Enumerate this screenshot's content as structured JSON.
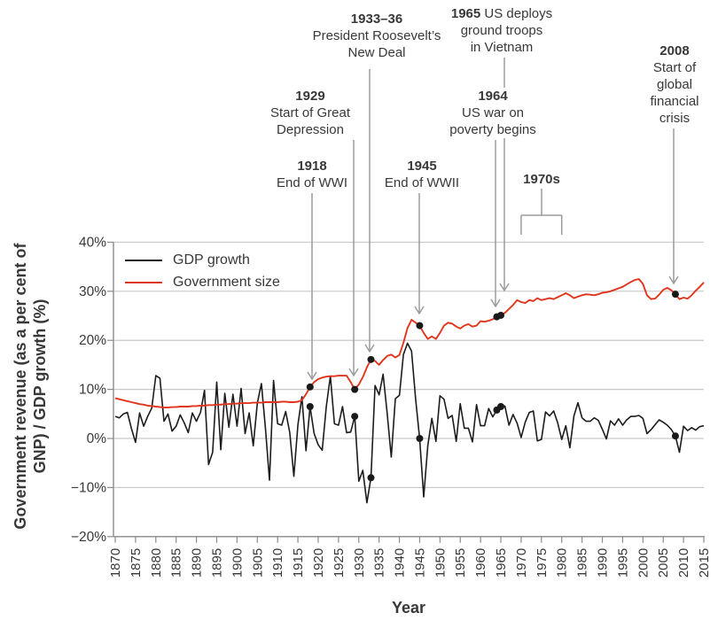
{
  "figure": {
    "y_axis_title_line1": "Government revenue (as a per cent of",
    "y_axis_title_line2": "GNP) / GDP growth (%)",
    "x_axis_title": "Year"
  },
  "legend": {
    "items": [
      {
        "label": "GDP growth",
        "color": "#1c1c1c"
      },
      {
        "label": "Government size",
        "color": "#e0351c"
      }
    ]
  },
  "colors": {
    "gdp_line": "#1c1c1c",
    "government_line": "#e0351c",
    "grid": "#c9c9c9",
    "axis": "#8c8c8c",
    "annotation_line": "#9b9b9b",
    "text": "#383838",
    "marker": "#1a1a1a"
  },
  "chart_data": {
    "type": "line",
    "title": "",
    "xlabel": "Year",
    "ylabel": "Government revenue (as a per cent of GNP) / GDP growth (%)",
    "xlim": [
      1870,
      2015
    ],
    "ylim": [
      -20,
      40
    ],
    "grid": "horizontal",
    "legend_position": "top-left-inside",
    "x_ticks": [
      1870,
      1875,
      1880,
      1885,
      1890,
      1895,
      1900,
      1905,
      1910,
      1915,
      1920,
      1925,
      1930,
      1935,
      1940,
      1945,
      1950,
      1955,
      1960,
      1965,
      1970,
      1975,
      1980,
      1985,
      1990,
      1995,
      2000,
      2005,
      2010,
      2015
    ],
    "y_ticks": [
      {
        "v": 40,
        "label": "40%"
      },
      {
        "v": 30,
        "label": "30%"
      },
      {
        "v": 20,
        "label": "20%"
      },
      {
        "v": 10,
        "label": "10%"
      },
      {
        "v": 0,
        "label": "0%"
      },
      {
        "v": -10,
        "label": "−10%"
      },
      {
        "v": -20,
        "label": "−20%"
      }
    ],
    "x_start": 1870,
    "x_step": 1,
    "series": [
      {
        "name": "GDP growth",
        "color": "#1c1c1c",
        "values": [
          4.5,
          4.2,
          5.0,
          5.3,
          2.0,
          -0.8,
          5.2,
          2.5,
          4.5,
          6.2,
          12.8,
          12.3,
          3.5,
          5.0,
          1.5,
          2.5,
          4.8,
          3.2,
          1.2,
          5.2,
          3.5,
          5.3,
          9.8,
          -5.3,
          -2.8,
          11.5,
          -2.3,
          9.2,
          2.3,
          9.0,
          2.5,
          10.2,
          1.0,
          5.2,
          -1.5,
          7.2,
          11.2,
          2.2,
          -8.5,
          11.8,
          3.0,
          2.7,
          5.5,
          1.2,
          -7.7,
          2.8,
          8.5,
          -2.5,
          6.5,
          1.0,
          -1.3,
          -2.4,
          6.5,
          12.7,
          3.0,
          2.7,
          6.5,
          1.2,
          1.3,
          4.5,
          -8.7,
          -6.5,
          -13.1,
          -8.0,
          10.8,
          8.9,
          13.1,
          5.1,
          -3.8,
          8.1,
          8.8,
          17.1,
          19.4,
          17.8,
          8.0,
          0.0,
          -11.9,
          -1.5,
          4.1,
          -0.6,
          8.7,
          8.0,
          4.1,
          4.7,
          -0.6,
          7.1,
          2.1,
          2.1,
          -0.7,
          6.9,
          2.6,
          2.6,
          6.1,
          4.4,
          5.8,
          6.5,
          6.6,
          2.7,
          4.9,
          3.1,
          0.2,
          3.3,
          5.3,
          5.6,
          -0.5,
          -0.2,
          5.4,
          4.6,
          5.6,
          3.2,
          -0.2,
          2.6,
          -1.9,
          4.6,
          7.3,
          4.2,
          3.5,
          3.5,
          4.2,
          3.7,
          1.9,
          -0.1,
          3.6,
          2.7,
          4.0,
          2.7,
          3.8,
          4.5,
          4.5,
          4.7,
          4.1,
          1.0,
          1.8,
          2.8,
          3.8,
          3.3,
          2.7,
          1.8,
          0.5,
          -2.8,
          2.5,
          1.6,
          2.2,
          1.7,
          2.4,
          2.6
        ]
      },
      {
        "name": "Government size",
        "color": "#e0351c",
        "values": [
          8.2,
          8.0,
          7.8,
          7.6,
          7.4,
          7.2,
          7.0,
          6.9,
          6.7,
          6.6,
          6.5,
          6.4,
          6.3,
          6.3,
          6.4,
          6.4,
          6.5,
          6.5,
          6.5,
          6.6,
          6.6,
          6.7,
          6.7,
          6.8,
          6.8,
          6.9,
          6.9,
          7.0,
          7.0,
          7.1,
          7.1,
          7.2,
          7.2,
          7.2,
          7.3,
          7.3,
          7.3,
          7.4,
          7.4,
          7.4,
          7.4,
          7.5,
          7.5,
          7.4,
          7.4,
          7.5,
          7.8,
          9.0,
          10.5,
          11.5,
          12.1,
          12.4,
          12.6,
          12.7,
          12.7,
          12.8,
          12.8,
          12.8,
          11.5,
          10.0,
          11.0,
          12.5,
          14.5,
          16.1,
          15.8,
          15.0,
          16.0,
          16.8,
          17.1,
          16.5,
          17.0,
          19.5,
          22.5,
          24.2,
          23.6,
          23.0,
          21.5,
          20.3,
          20.8,
          20.3,
          21.5,
          23.0,
          23.6,
          23.4,
          22.8,
          22.4,
          23.0,
          23.3,
          22.8,
          23.0,
          23.9,
          23.8,
          24.0,
          24.3,
          24.8,
          25.1,
          25.6,
          26.4,
          27.2,
          28.2,
          27.8,
          27.6,
          28.2,
          28.0,
          28.6,
          28.2,
          28.4,
          28.6,
          28.4,
          28.8,
          29.2,
          29.6,
          29.2,
          28.6,
          28.9,
          29.2,
          29.4,
          29.3,
          29.2,
          29.4,
          29.7,
          29.8,
          30.0,
          30.3,
          30.6,
          30.9,
          31.4,
          31.9,
          32.3,
          32.5,
          31.5,
          29.2,
          28.4,
          28.5,
          29.3,
          30.3,
          30.7,
          30.2,
          29.4,
          28.4,
          28.7,
          28.5,
          29.2,
          30.1,
          30.9,
          31.8
        ]
      }
    ],
    "event_marker_years": [
      1918,
      1929,
      1933,
      1945,
      1964,
      1965,
      2008
    ]
  },
  "annotations": [
    {
      "id": "new-deal",
      "year_label": "1933–36",
      "year_inline": false,
      "lines": [
        "President Roosevelt’s",
        "New Deal"
      ],
      "target_year": 1933
    },
    {
      "id": "vietnam",
      "year_label": "1965",
      "year_inline": true,
      "lines": [
        "US deploys",
        "ground troops",
        "in Vietnam"
      ],
      "target_year": 1965
    },
    {
      "id": "depression",
      "year_label": "1929",
      "year_inline": false,
      "lines": [
        "Start of Great",
        "Depression"
      ],
      "target_year": 1929
    },
    {
      "id": "poverty",
      "year_label": "1964",
      "year_inline": false,
      "lines": [
        "US war on",
        "poverty begins"
      ],
      "target_year": 1964
    },
    {
      "id": "crisis",
      "year_label": "2008",
      "year_inline": false,
      "lines": [
        "Start of",
        "global",
        "financial",
        "crisis"
      ],
      "target_year": 2008
    },
    {
      "id": "wwi",
      "year_label": "1918",
      "year_inline": false,
      "lines": [
        "End of WWI"
      ],
      "target_year": 1918
    },
    {
      "id": "wwii",
      "year_label": "1945",
      "year_inline": false,
      "lines": [
        "End of WWII"
      ],
      "target_year": 1945
    },
    {
      "id": "seventies",
      "year_label": "1970s",
      "year_inline": false,
      "lines": [],
      "bracket": {
        "from_year": 1970,
        "to_year": 1980
      }
    }
  ]
}
